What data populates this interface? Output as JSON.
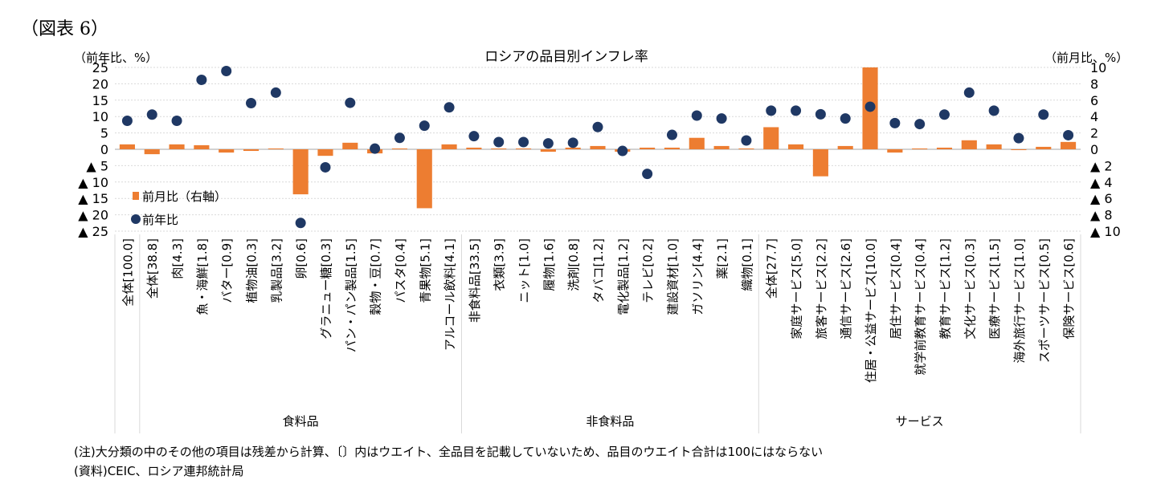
{
  "figure_label": "（図表 6）",
  "notes": {
    "note": "(注)大分類の中のその他の項目は残差から計算、〔〕内はウエイト、全品目を記載していないため、品目のウエイト合計は100にはならない",
    "source": "(資料)CEIC、ロシア連邦統計局"
  },
  "colors": {
    "bar": "#ED7D31",
    "dot": "#1F3864",
    "grid": "#D9D9D9",
    "axis": "#A6A6A6"
  },
  "chart_data": {
    "type": "bar",
    "title": "ロシアの品目別インフレ率",
    "left_axis_unit": "（前年比、%）",
    "right_axis_unit": "（前月比、%）",
    "left_ylim": [
      -25,
      25
    ],
    "right_ylim": [
      -10,
      10
    ],
    "left_ticks": [
      "25",
      "20",
      "15",
      "10",
      "5",
      "0",
      "▲ 5",
      "▲ 10",
      "▲ 15",
      "▲ 20",
      "▲ 25"
    ],
    "right_ticks": [
      "10",
      "8",
      "6",
      "4",
      "2",
      "0",
      "▲ 2",
      "▲ 4",
      "▲ 6",
      "▲ 8",
      "▲ 10"
    ],
    "legend": {
      "bar": "前月比（右軸）",
      "dot": "前年比"
    },
    "categories": [
      "全体[100.0]",
      "全体[38.8]",
      "肉[4.3]",
      "魚・海鮮[1.8]",
      "バター[0.9]",
      "植物油[0.3]",
      "乳製品[3.2]",
      "卵[0.6]",
      "グラニュー糖[0.3]",
      "パン・パン製品[1.5]",
      "穀物・豆[0.7]",
      "パスタ[0.4]",
      "青果物[5.1]",
      "アルコール飲料[4.1]",
      "非食料品[33.5]",
      "衣類[3.9]",
      "ニット[1.0]",
      "履物[1.6]",
      "洗剤[0.8]",
      "タバコ[1.2]",
      "電化製品[1.2]",
      "テレビ[0.2]",
      "建設資材[1.0]",
      "ガソリン[4.4]",
      "薬[2.1]",
      "織物[0.1]",
      "全体[27.7]",
      "家庭サービス[5.0]",
      "旅客サービス[2.2]",
      "通信サービス[2.6]",
      "住居・公益サービス[10.0]",
      "居住サービス[0.4]",
      "就学前教育サービス[0.4]",
      "教育サービス[1.2]",
      "文化サービス[0.3]",
      "医療サービス[1.5]",
      "海外旅行サービス[1.0]",
      "スポーツサービス[0.5]",
      "保険サービス[0.6]"
    ],
    "series": [
      {
        "name": "前月比（右軸）",
        "axis": "right",
        "values": [
          0.6,
          -0.6,
          0.6,
          0.5,
          -0.4,
          -0.2,
          0.1,
          -5.5,
          -0.8,
          0.8,
          -0.5,
          0.1,
          -7.2,
          0.6,
          0.2,
          0.1,
          0.1,
          -0.3,
          0.2,
          0.4,
          -0.3,
          0.2,
          0.2,
          1.4,
          0.4,
          0.1,
          2.7,
          0.6,
          -3.3,
          0.4,
          10.0,
          -0.4,
          0.1,
          0.2,
          1.1,
          0.6,
          -0.1,
          0.3,
          0.9
        ]
      },
      {
        "name": "前年比",
        "axis": "left",
        "values": [
          8.7,
          10.6,
          8.7,
          21.2,
          23.9,
          14.1,
          17.3,
          -22.5,
          -5.5,
          14.2,
          0.2,
          3.5,
          7.2,
          12.8,
          4.0,
          2.2,
          2.2,
          1.8,
          2.0,
          6.8,
          -0.5,
          -7.5,
          4.4,
          10.3,
          9.4,
          2.7,
          11.8,
          11.8,
          10.7,
          9.4,
          13.0,
          8.0,
          7.7,
          10.6,
          17.3,
          11.8,
          3.4,
          10.6,
          4.3
        ]
      }
    ],
    "groups": [
      {
        "label": "食料品",
        "start": 1,
        "end": 13
      },
      {
        "label": "非食料品",
        "start": 14,
        "end": 25
      },
      {
        "label": "サービス",
        "start": 26,
        "end": 38
      }
    ]
  }
}
